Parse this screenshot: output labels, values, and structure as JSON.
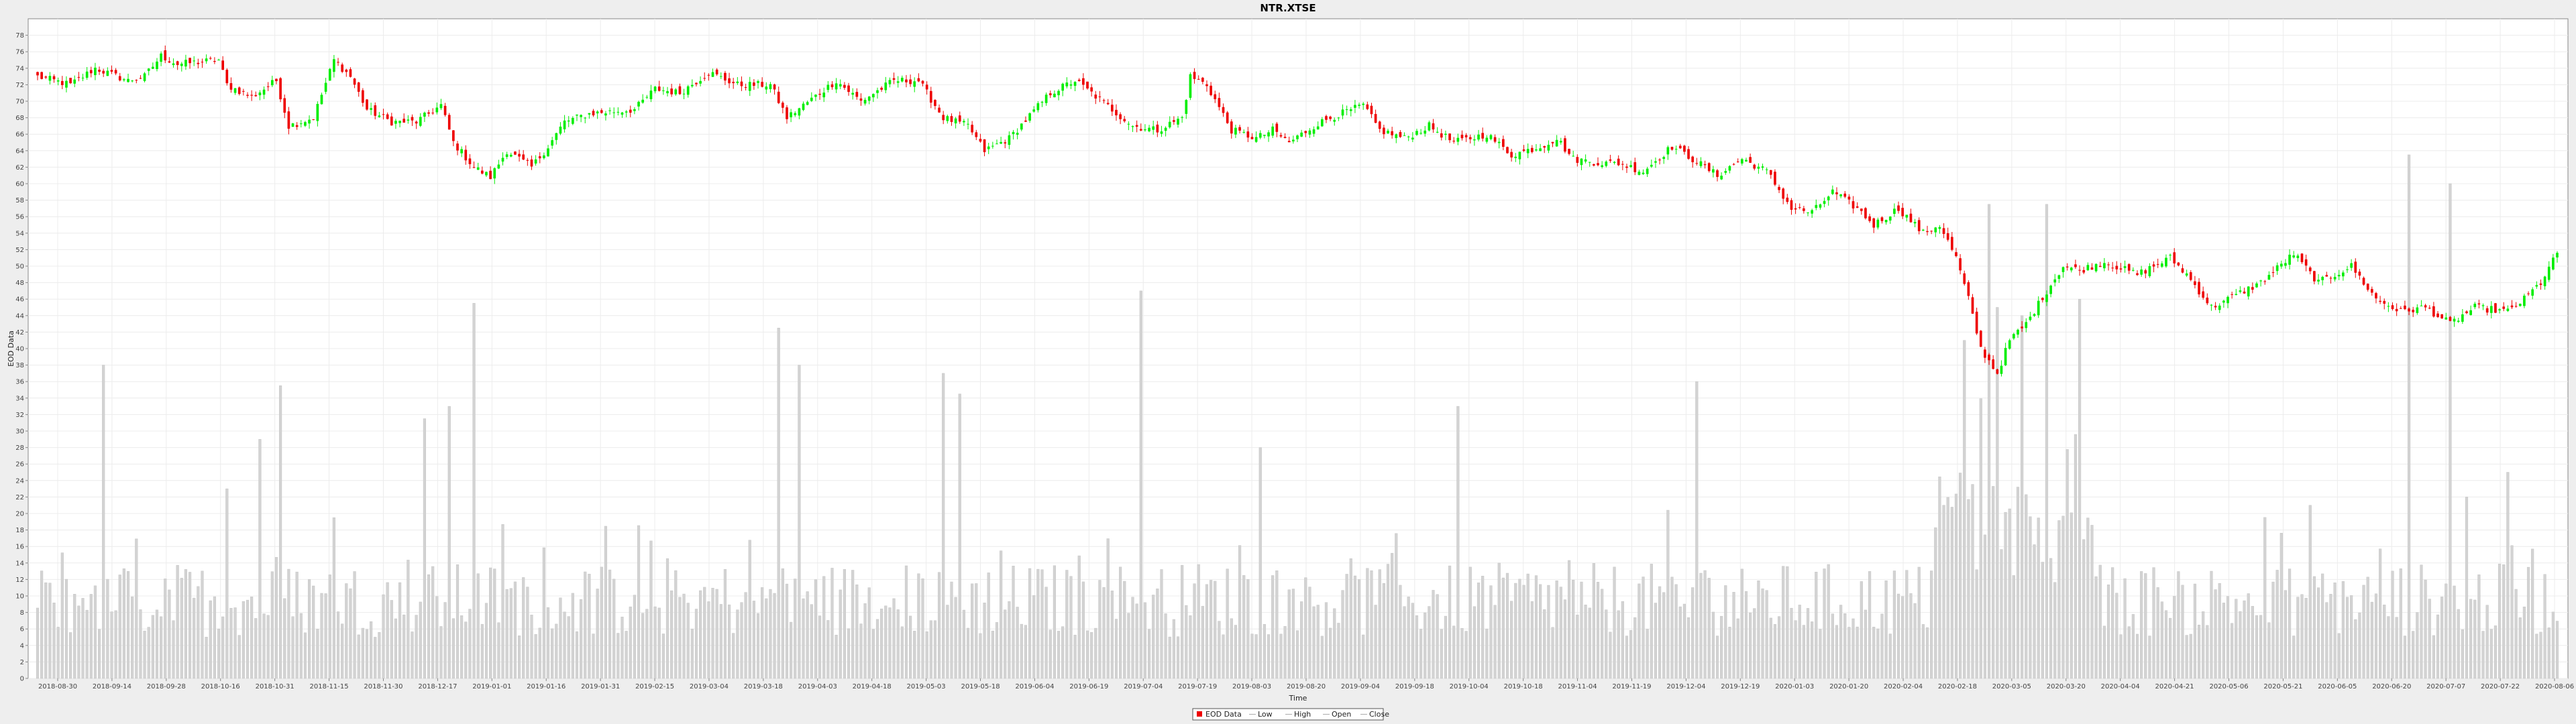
{
  "chart_data": {
    "type": "candlestick",
    "title": "NTR.XTSE",
    "xlabel": "Time",
    "ylabel": "EOD Data",
    "ylim": [
      0,
      80
    ],
    "y_ticks": [
      0,
      2,
      4,
      6,
      8,
      10,
      12,
      14,
      16,
      18,
      20,
      22,
      24,
      26,
      28,
      30,
      32,
      34,
      36,
      38,
      40,
      42,
      44,
      46,
      48,
      50,
      52,
      54,
      56,
      58,
      60,
      62,
      64,
      66,
      68,
      70,
      72,
      74,
      76,
      78
    ],
    "x_ticks": [
      "2018-08-30",
      "2018-09-14",
      "2018-09-28",
      "2018-10-16",
      "2018-10-31",
      "2018-11-15",
      "2018-11-30",
      "2018-12-17",
      "2019-01-01",
      "2019-01-16",
      "2019-01-31",
      "2019-02-15",
      "2019-03-04",
      "2019-03-18",
      "2019-04-03",
      "2019-04-18",
      "2019-05-03",
      "2019-05-18",
      "2019-06-04",
      "2019-06-19",
      "2019-07-04",
      "2019-07-19",
      "2019-08-03",
      "2019-08-20",
      "2019-09-04",
      "2019-09-18",
      "2019-10-04",
      "2019-10-18",
      "2019-11-04",
      "2019-11-19",
      "2019-12-04",
      "2019-12-19",
      "2020-01-03",
      "2020-01-20",
      "2020-02-04",
      "2020-02-18",
      "2020-03-05",
      "2020-03-20",
      "2020-04-04",
      "2020-04-21",
      "2020-05-06",
      "2020-05-21",
      "2020-06-05",
      "2020-06-20",
      "2020-07-07",
      "2020-07-22",
      "2020-08-06"
    ],
    "grid": true,
    "legend_position": "bottom",
    "legend": [
      "EOD Data",
      "Low",
      "High",
      "Open",
      "Close"
    ],
    "up_color": "#00ee00",
    "down_color": "#ee0000",
    "volume_color": "#d3d3d3",
    "close_anchors": [
      [
        0,
        73
      ],
      [
        8,
        72
      ],
      [
        14,
        74
      ],
      [
        22,
        72.5
      ],
      [
        26,
        73
      ],
      [
        30,
        75.5
      ],
      [
        34,
        74.5
      ],
      [
        44,
        75
      ],
      [
        46,
        72
      ],
      [
        52,
        70.5
      ],
      [
        58,
        72.5
      ],
      [
        61,
        67
      ],
      [
        67,
        68
      ],
      [
        72,
        75
      ],
      [
        76,
        73
      ],
      [
        80,
        69
      ],
      [
        86,
        67.5
      ],
      [
        92,
        67.5
      ],
      [
        98,
        69.5
      ],
      [
        101,
        65
      ],
      [
        106,
        62
      ],
      [
        110,
        60.8
      ],
      [
        114,
        64
      ],
      [
        120,
        62
      ],
      [
        124,
        64.5
      ],
      [
        128,
        67.5
      ],
      [
        134,
        68.5
      ],
      [
        145,
        69
      ],
      [
        150,
        71.5
      ],
      [
        156,
        71
      ],
      [
        163,
        73.5
      ],
      [
        170,
        72
      ],
      [
        178,
        72
      ],
      [
        182,
        68
      ],
      [
        186,
        69.5
      ],
      [
        194,
        72.5
      ],
      [
        200,
        70
      ],
      [
        208,
        72.5
      ],
      [
        214,
        72.5
      ],
      [
        220,
        68
      ],
      [
        226,
        67
      ],
      [
        230,
        64
      ],
      [
        236,
        65.5
      ],
      [
        246,
        71
      ],
      [
        252,
        72.5
      ],
      [
        256,
        71
      ],
      [
        266,
        67
      ],
      [
        272,
        66.5
      ],
      [
        278,
        68
      ],
      [
        280,
        73
      ],
      [
        284,
        72
      ],
      [
        290,
        66.5
      ],
      [
        296,
        65.5
      ],
      [
        300,
        66.5
      ],
      [
        304,
        65
      ],
      [
        310,
        67
      ],
      [
        314,
        68
      ],
      [
        322,
        69.5
      ],
      [
        326,
        66.5
      ],
      [
        332,
        65.5
      ],
      [
        338,
        67
      ],
      [
        344,
        65
      ],
      [
        352,
        66
      ],
      [
        358,
        63.5
      ],
      [
        365,
        64.5
      ],
      [
        369,
        65.5
      ],
      [
        373,
        63
      ],
      [
        380,
        62.5
      ],
      [
        384,
        62.5
      ],
      [
        390,
        61.5
      ],
      [
        397,
        64.5
      ],
      [
        402,
        63
      ],
      [
        408,
        61
      ],
      [
        414,
        63
      ],
      [
        420,
        61.5
      ],
      [
        426,
        57
      ],
      [
        431,
        56.5
      ],
      [
        436,
        59
      ],
      [
        442,
        57
      ],
      [
        446,
        55
      ],
      [
        452,
        57
      ],
      [
        458,
        54
      ],
      [
        462,
        55
      ],
      [
        466,
        51
      ],
      [
        469,
        46
      ],
      [
        472,
        40
      ],
      [
        476,
        37
      ],
      [
        479,
        41
      ],
      [
        483,
        43
      ],
      [
        488,
        47
      ],
      [
        492,
        50
      ],
      [
        496,
        49.5
      ],
      [
        502,
        50.5
      ],
      [
        510,
        49
      ],
      [
        518,
        51
      ],
      [
        522,
        49
      ],
      [
        528,
        45
      ],
      [
        532,
        46
      ],
      [
        540,
        48
      ],
      [
        548,
        51.5
      ],
      [
        554,
        48
      ],
      [
        562,
        50
      ],
      [
        568,
        46
      ],
      [
        574,
        44.5
      ],
      [
        580,
        45
      ],
      [
        586,
        43
      ],
      [
        592,
        45
      ],
      [
        600,
        44.5
      ],
      [
        604,
        46
      ],
      [
        608,
        48
      ],
      [
        612,
        51.5
      ]
    ],
    "volume_spikes": [
      [
        16,
        38
      ],
      [
        46,
        23
      ],
      [
        54,
        29
      ],
      [
        59,
        35.5
      ],
      [
        72,
        19.5
      ],
      [
        94,
        31.5
      ],
      [
        100,
        33
      ],
      [
        106,
        45.5
      ],
      [
        180,
        42.5
      ],
      [
        185,
        38
      ],
      [
        220,
        37
      ],
      [
        224,
        34.5
      ],
      [
        268,
        47
      ],
      [
        297,
        28
      ],
      [
        345,
        33
      ],
      [
        403,
        36
      ],
      [
        468,
        41
      ],
      [
        474,
        57.5
      ],
      [
        476,
        45
      ],
      [
        482,
        44
      ],
      [
        488,
        57.5
      ],
      [
        496,
        46
      ],
      [
        552,
        21
      ],
      [
        576,
        63.5
      ],
      [
        586,
        60
      ],
      [
        590,
        22
      ],
      [
        600,
        25
      ]
    ]
  }
}
